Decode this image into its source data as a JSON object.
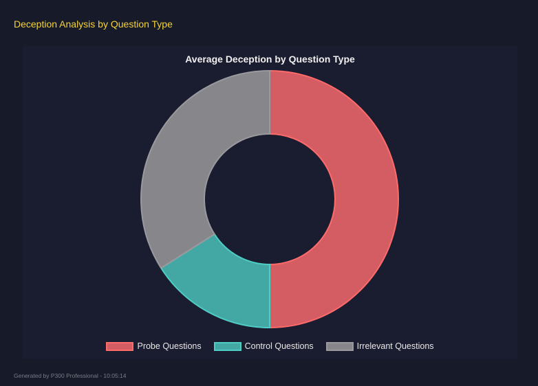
{
  "header": {
    "title": "Deception Analysis by Question Type"
  },
  "chart_data": {
    "type": "doughnut",
    "title": "Average Deception by Question Type",
    "categories": [
      "Probe Questions",
      "Control Questions",
      "Irrelevant Questions"
    ],
    "values": [
      50,
      16,
      34
    ],
    "colors": [
      "#d35d62",
      "#43a8a4",
      "#87868b"
    ],
    "border_colors": [
      "#ff6b6b",
      "#4ecdc4",
      "#9a9a9e"
    ],
    "legend_position": "bottom"
  },
  "footer": {
    "text": "Generated by P300 Professional - 10:05:14"
  }
}
